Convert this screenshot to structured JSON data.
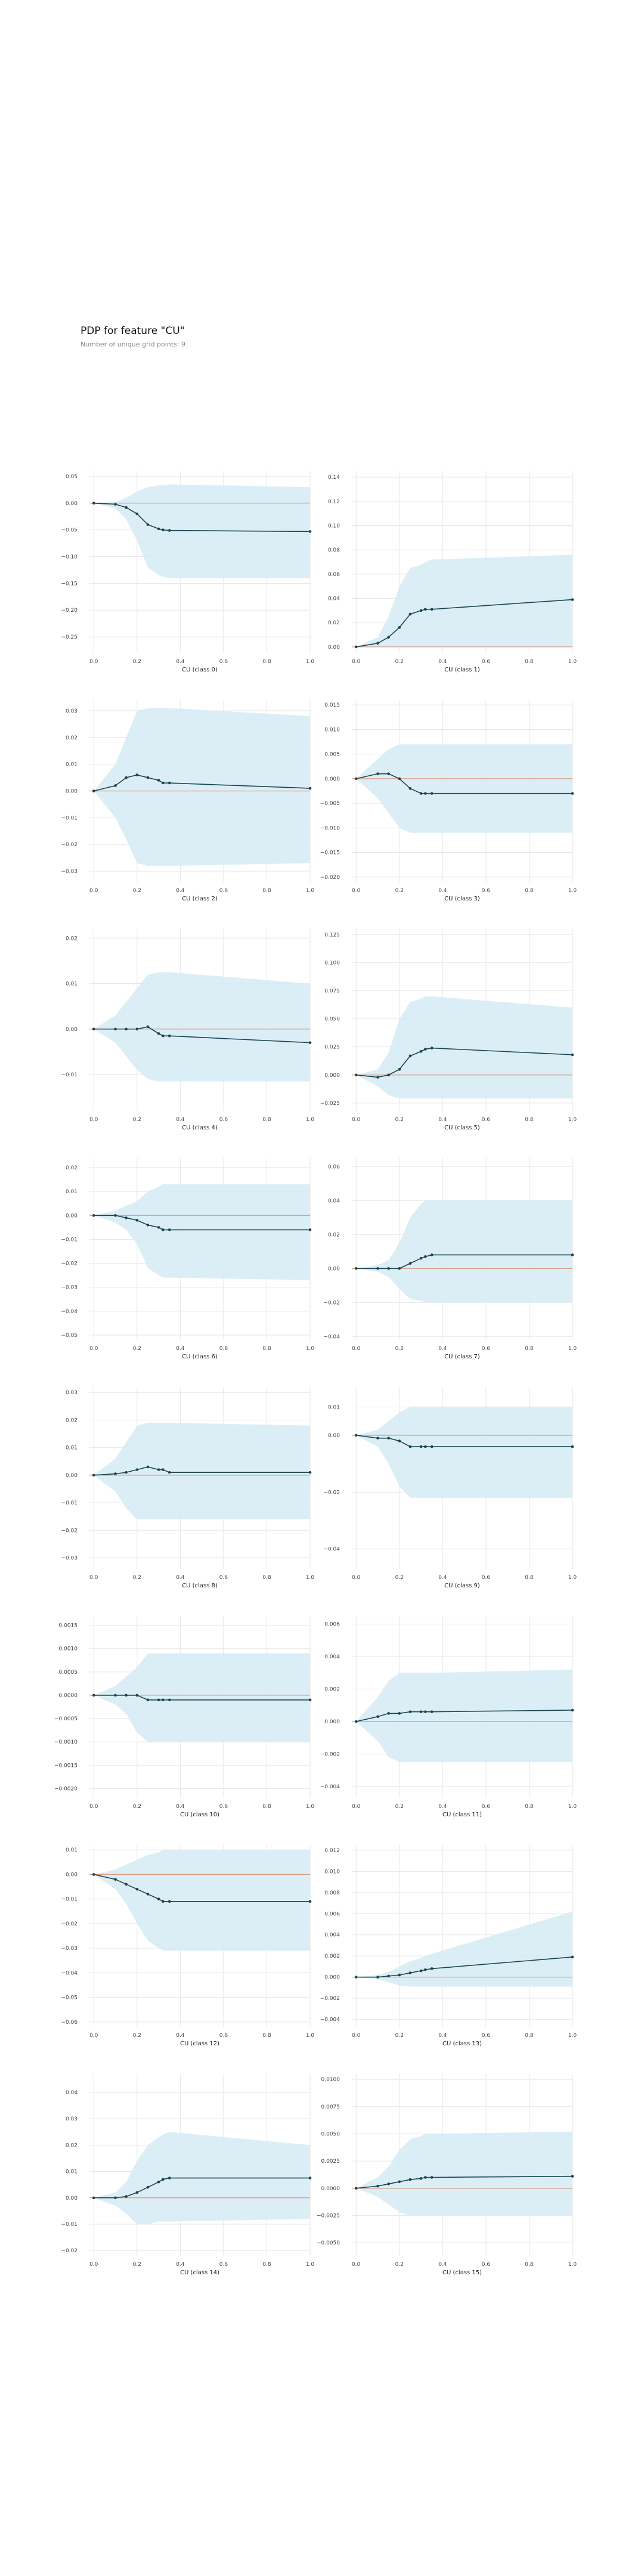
{
  "header": {
    "title": "PDP for feature \"CU\"",
    "subtitle": "Number of unique grid points: 9"
  },
  "colors": {
    "band": "#d6ebf3",
    "line": "#1a4550",
    "zero_line": "#d9977e",
    "grid": "#e6e6e6",
    "tick_text": "#444444"
  },
  "chart_data": [
    {
      "type": "line",
      "xlabel": "CU (class 0)",
      "x": [
        0.0,
        0.1,
        0.15,
        0.2,
        0.25,
        0.3,
        0.32,
        0.35,
        1.0
      ],
      "series": [
        {
          "values": [
            0,
            -0.002,
            -0.008,
            -0.02,
            -0.04,
            -0.048,
            -0.05,
            -0.051,
            -0.053
          ]
        }
      ],
      "band_upper": [
        0,
        0.002,
        0.01,
        0.022,
        0.03,
        0.033,
        0.034,
        0.035,
        0.03
      ],
      "band_lower": [
        0,
        -0.01,
        -0.03,
        -0.07,
        -0.12,
        -0.135,
        -0.138,
        -0.14,
        -0.14
      ],
      "ylim": [
        -0.28,
        0.06
      ],
      "yticks": [
        0.05,
        0,
        -0.05,
        -0.1,
        -0.15,
        -0.2,
        -0.25
      ],
      "ytick_labels": [
        "0.05",
        "0.00",
        "−0.05",
        "−0.10",
        "−0.15",
        "−0.20",
        "−0.25"
      ]
    },
    {
      "type": "line",
      "xlabel": "CU (class 1)",
      "x": [
        0.0,
        0.1,
        0.15,
        0.2,
        0.25,
        0.3,
        0.32,
        0.35,
        1.0
      ],
      "series": [
        {
          "values": [
            0,
            0.003,
            0.008,
            0.016,
            0.027,
            0.03,
            0.031,
            0.031,
            0.039
          ]
        }
      ],
      "band_upper": [
        0,
        0.008,
        0.025,
        0.05,
        0.065,
        0.068,
        0.07,
        0.072,
        0.076
      ],
      "band_lower": [
        0,
        0,
        0,
        0,
        0,
        0,
        0,
        0,
        0
      ],
      "ylim": [
        -0.005,
        0.145
      ],
      "yticks": [
        0,
        0.02,
        0.04,
        0.06,
        0.08,
        0.1,
        0.12,
        0.14
      ],
      "ytick_labels": [
        "0.00",
        "0.02",
        "0.04",
        "0.06",
        "0.08",
        "0.10",
        "0.12",
        "0.14"
      ]
    },
    {
      "type": "line",
      "xlabel": "CU (class 2)",
      "x": [
        0.0,
        0.1,
        0.15,
        0.2,
        0.25,
        0.3,
        0.32,
        0.35,
        1.0
      ],
      "series": [
        {
          "values": [
            0,
            0.002,
            0.005,
            0.006,
            0.005,
            0.004,
            0.003,
            0.003,
            0.001
          ]
        }
      ],
      "band_upper": [
        0,
        0.01,
        0.02,
        0.03,
        0.031,
        0.031,
        0.031,
        0.031,
        0.028
      ],
      "band_lower": [
        0,
        -0.01,
        -0.018,
        -0.027,
        -0.028,
        -0.028,
        -0.028,
        -0.028,
        -0.027
      ],
      "ylim": [
        -0.034,
        0.034
      ],
      "yticks": [
        0.03,
        0.02,
        0.01,
        0,
        -0.01,
        -0.02,
        -0.03
      ],
      "ytick_labels": [
        "0.03",
        "0.02",
        "0.01",
        "0.00",
        "−0.01",
        "−0.02",
        "−0.03"
      ]
    },
    {
      "type": "line",
      "xlabel": "CU (class 3)",
      "x": [
        0.0,
        0.1,
        0.15,
        0.2,
        0.25,
        0.3,
        0.32,
        0.35,
        1.0
      ],
      "series": [
        {
          "values": [
            0,
            0.001,
            0.001,
            0,
            -0.002,
            -0.003,
            -0.003,
            -0.003,
            -0.003
          ]
        }
      ],
      "band_upper": [
        0,
        0.004,
        0.006,
        0.007,
        0.007,
        0.007,
        0.007,
        0.007,
        0.007
      ],
      "band_lower": [
        0,
        -0.004,
        -0.007,
        -0.01,
        -0.011,
        -0.011,
        -0.011,
        -0.011,
        -0.011
      ],
      "ylim": [
        -0.021,
        0.016
      ],
      "yticks": [
        0.015,
        0.01,
        0.005,
        0,
        -0.005,
        -0.01,
        -0.015,
        -0.02
      ],
      "ytick_labels": [
        "0.015",
        "0.010",
        "0.005",
        "0.000",
        "−0.005",
        "−0.010",
        "−0.015",
        "−0.020"
      ]
    },
    {
      "type": "line",
      "xlabel": "CU (class 4)",
      "x": [
        0.0,
        0.1,
        0.15,
        0.2,
        0.25,
        0.3,
        0.32,
        0.35,
        1.0
      ],
      "series": [
        {
          "values": [
            0,
            0,
            0,
            0,
            0.0005,
            -0.001,
            -0.0015,
            -0.0015,
            -0.003
          ]
        }
      ],
      "band_upper": [
        0,
        0.003,
        0.006,
        0.009,
        0.012,
        0.0125,
        0.0125,
        0.0125,
        0.01
      ],
      "band_lower": [
        0,
        -0.003,
        -0.006,
        -0.009,
        -0.011,
        -0.0115,
        -0.0115,
        -0.0115,
        -0.0115
      ],
      "ylim": [
        -0.018,
        0.022
      ],
      "yticks": [
        0.02,
        0.01,
        0,
        -0.01
      ],
      "ytick_labels": [
        "0.02",
        "0.01",
        "0.00",
        "−0.01"
      ]
    },
    {
      "type": "line",
      "xlabel": "CU (class 5)",
      "x": [
        0.0,
        0.1,
        0.15,
        0.2,
        0.25,
        0.3,
        0.32,
        0.35,
        1.0
      ],
      "series": [
        {
          "values": [
            0,
            -0.002,
            0,
            0.005,
            0.017,
            0.021,
            0.023,
            0.024,
            0.018
          ]
        }
      ],
      "band_upper": [
        0,
        0.005,
        0.02,
        0.05,
        0.065,
        0.068,
        0.07,
        0.07,
        0.06
      ],
      "band_lower": [
        0,
        -0.01,
        -0.018,
        -0.021,
        -0.021,
        -0.021,
        -0.021,
        -0.021,
        -0.021
      ],
      "ylim": [
        -0.032,
        0.13
      ],
      "yticks": [
        0.125,
        0.1,
        0.075,
        0.05,
        0.025,
        0,
        -0.025
      ],
      "ytick_labels": [
        "0.125",
        "0.100",
        "0.075",
        "0.050",
        "0.025",
        "0.000",
        "−0.025"
      ]
    },
    {
      "type": "line",
      "xlabel": "CU (class 6)",
      "x": [
        0.0,
        0.1,
        0.15,
        0.2,
        0.25,
        0.3,
        0.32,
        0.35,
        1.0
      ],
      "series": [
        {
          "values": [
            0,
            0,
            -0.001,
            -0.002,
            -0.004,
            -0.005,
            -0.006,
            -0.006,
            -0.006
          ]
        }
      ],
      "band_upper": [
        0,
        0.002,
        0.004,
        0.006,
        0.01,
        0.012,
        0.013,
        0.013,
        0.013
      ],
      "band_lower": [
        0,
        -0.003,
        -0.006,
        -0.012,
        -0.022,
        -0.025,
        -0.026,
        -0.026,
        -0.027
      ],
      "ylim": [
        -0.052,
        0.024
      ],
      "yticks": [
        0.02,
        0.01,
        0,
        -0.01,
        -0.02,
        -0.03,
        -0.04,
        -0.05
      ],
      "ytick_labels": [
        "0.02",
        "0.01",
        "0.00",
        "−0.01",
        "−0.02",
        "−0.03",
        "−0.04",
        "−0.05"
      ]
    },
    {
      "type": "line",
      "xlabel": "CU (class 7)",
      "x": [
        0.0,
        0.1,
        0.15,
        0.2,
        0.25,
        0.3,
        0.32,
        0.35,
        1.0
      ],
      "series": [
        {
          "values": [
            0,
            0,
            0,
            0,
            0.003,
            0.006,
            0.007,
            0.008,
            0.008
          ]
        }
      ],
      "band_upper": [
        0,
        0.002,
        0.005,
        0.015,
        0.03,
        0.038,
        0.04,
        0.04,
        0.04
      ],
      "band_lower": [
        0,
        -0.002,
        -0.005,
        -0.012,
        -0.018,
        -0.019,
        -0.02,
        -0.02,
        -0.02
      ],
      "ylim": [
        -0.042,
        0.065
      ],
      "yticks": [
        0.06,
        0.04,
        0.02,
        0,
        -0.02,
        -0.04
      ],
      "ytick_labels": [
        "0.06",
        "0.04",
        "0.02",
        "0.00",
        "−0.02",
        "−0.04"
      ]
    },
    {
      "type": "line",
      "xlabel": "CU (class 8)",
      "x": [
        0.0,
        0.1,
        0.15,
        0.2,
        0.25,
        0.3,
        0.32,
        0.35,
        1.0
      ],
      "series": [
        {
          "values": [
            0,
            0.0005,
            0.001,
            0.002,
            0.003,
            0.002,
            0.002,
            0.001,
            0.001
          ]
        }
      ],
      "band_upper": [
        0,
        0.006,
        0.012,
        0.018,
        0.019,
        0.019,
        0.019,
        0.019,
        0.018
      ],
      "band_lower": [
        0,
        -0.006,
        -0.012,
        -0.016,
        -0.016,
        -0.016,
        -0.016,
        -0.016,
        -0.016
      ],
      "ylim": [
        -0.034,
        0.032
      ],
      "yticks": [
        0.03,
        0.02,
        0.01,
        0,
        -0.01,
        -0.02,
        -0.03
      ],
      "ytick_labels": [
        "0.03",
        "0.02",
        "0.01",
        "0.00",
        "−0.01",
        "−0.02",
        "−0.03"
      ]
    },
    {
      "type": "line",
      "xlabel": "CU (class 9)",
      "x": [
        0.0,
        0.1,
        0.15,
        0.2,
        0.25,
        0.3,
        0.32,
        0.35,
        1.0
      ],
      "series": [
        {
          "values": [
            0,
            -0.001,
            -0.001,
            -0.002,
            -0.004,
            -0.004,
            -0.004,
            -0.004,
            -0.004
          ]
        }
      ],
      "band_upper": [
        0,
        0.002,
        0.005,
        0.008,
        0.01,
        0.01,
        0.01,
        0.01,
        0.01
      ],
      "band_lower": [
        0,
        -0.004,
        -0.01,
        -0.018,
        -0.022,
        -0.022,
        -0.022,
        -0.022,
        -0.022
      ],
      "ylim": [
        -0.047,
        0.017
      ],
      "yticks": [
        0.01,
        0,
        -0.02,
        -0.04
      ],
      "ytick_labels": [
        "0.01",
        "0.00",
        "−0.02",
        "−0.04"
      ]
    },
    {
      "type": "line",
      "xlabel": "CU (class 10)",
      "x": [
        0.0,
        0.1,
        0.15,
        0.2,
        0.25,
        0.3,
        0.32,
        0.35,
        1.0
      ],
      "series": [
        {
          "values": [
            0,
            0,
            0,
            0,
            -0.0001,
            -0.0001,
            -0.0001,
            -0.0001,
            -0.0001
          ]
        }
      ],
      "band_upper": [
        0,
        0.0002,
        0.0004,
        0.0006,
        0.0009,
        0.0009,
        0.0009,
        0.0009,
        0.0009
      ],
      "band_lower": [
        0,
        -0.0002,
        -0.0004,
        -0.0008,
        -0.001,
        -0.001,
        -0.001,
        -0.001,
        -0.001
      ],
      "ylim": [
        -0.0022,
        0.0017
      ],
      "yticks": [
        0.0015,
        0.001,
        0.0005,
        0,
        -0.0005,
        -0.001,
        -0.0015,
        -0.002
      ],
      "ytick_labels": [
        "0.0015",
        "0.0010",
        "0.0005",
        "0.0000",
        "−0.0005",
        "−0.0010",
        "−0.0015",
        "−0.0020"
      ]
    },
    {
      "type": "line",
      "xlabel": "CU (class 11)",
      "x": [
        0.0,
        0.1,
        0.15,
        0.2,
        0.25,
        0.3,
        0.32,
        0.35,
        1.0
      ],
      "series": [
        {
          "values": [
            0,
            0.0003,
            0.0005,
            0.0005,
            0.0006,
            0.0006,
            0.0006,
            0.0006,
            0.0007
          ]
        }
      ],
      "band_upper": [
        0,
        0.0015,
        0.0025,
        0.003,
        0.003,
        0.003,
        0.003,
        0.003,
        0.0032
      ],
      "band_lower": [
        0,
        -0.0012,
        -0.0022,
        -0.0025,
        -0.0025,
        -0.0025,
        -0.0025,
        -0.0025,
        -0.0025
      ],
      "ylim": [
        -0.0047,
        0.0065
      ],
      "yticks": [
        0.006,
        0.004,
        0.002,
        0,
        -0.002,
        -0.004
      ],
      "ytick_labels": [
        "0.006",
        "0.004",
        "0.002",
        "0.000",
        "−0.002",
        "−0.004"
      ]
    },
    {
      "type": "line",
      "xlabel": "CU (class 12)",
      "x": [
        0.0,
        0.1,
        0.15,
        0.2,
        0.25,
        0.3,
        0.32,
        0.35,
        1.0
      ],
      "series": [
        {
          "values": [
            0,
            -0.002,
            -0.004,
            -0.006,
            -0.008,
            -0.01,
            -0.011,
            -0.011,
            -0.011
          ]
        }
      ],
      "band_upper": [
        0,
        0.002,
        0.004,
        0.006,
        0.008,
        0.009,
        0.01,
        0.01,
        0.01
      ],
      "band_lower": [
        0,
        -0.006,
        -0.012,
        -0.02,
        -0.027,
        -0.03,
        -0.031,
        -0.031,
        -0.031
      ],
      "ylim": [
        -0.062,
        0.012
      ],
      "yticks": [
        0.01,
        0,
        -0.01,
        -0.02,
        -0.03,
        -0.04,
        -0.05,
        -0.06
      ],
      "ytick_labels": [
        "0.01",
        "0.00",
        "−0.01",
        "−0.02",
        "−0.03",
        "−0.04",
        "−0.05",
        "−0.06"
      ]
    },
    {
      "type": "line",
      "xlabel": "CU (class 13)",
      "x": [
        0.0,
        0.1,
        0.15,
        0.2,
        0.25,
        0.3,
        0.32,
        0.35,
        1.0
      ],
      "series": [
        {
          "values": [
            0,
            0,
            0.0001,
            0.0002,
            0.0004,
            0.0006,
            0.0007,
            0.0008,
            0.0019
          ]
        }
      ],
      "band_upper": [
        0,
        0.0002,
        0.0005,
        0.001,
        0.0015,
        0.0018,
        0.002,
        0.0022,
        0.0062
      ],
      "band_lower": [
        0,
        -0.0002,
        -0.0005,
        -0.0008,
        -0.0009,
        -0.0009,
        -0.0009,
        -0.0009,
        -0.0009
      ],
      "ylim": [
        -0.0047,
        0.0125
      ],
      "yticks": [
        0.012,
        0.01,
        0.008,
        0.006,
        0.004,
        0.002,
        0,
        -0.002,
        -0.004
      ],
      "ytick_labels": [
        "0.012",
        "0.010",
        "0.008",
        "0.006",
        "0.004",
        "0.002",
        "0.000",
        "−0.002",
        "−0.004"
      ]
    },
    {
      "type": "line",
      "xlabel": "CU (class 14)",
      "x": [
        0.0,
        0.1,
        0.15,
        0.2,
        0.25,
        0.3,
        0.32,
        0.35,
        1.0
      ],
      "series": [
        {
          "values": [
            0,
            0,
            0.0005,
            0.002,
            0.004,
            0.006,
            0.007,
            0.0075,
            0.0075
          ]
        }
      ],
      "band_upper": [
        0,
        0.002,
        0.006,
        0.014,
        0.02,
        0.023,
        0.024,
        0.025,
        0.02
      ],
      "band_lower": [
        0,
        -0.003,
        -0.006,
        -0.01,
        -0.01,
        -0.009,
        -0.009,
        -0.009,
        -0.008
      ],
      "ylim": [
        -0.022,
        0.047
      ],
      "yticks": [
        0.04,
        0.03,
        0.02,
        0.01,
        0,
        -0.01,
        -0.02
      ],
      "ytick_labels": [
        "0.04",
        "0.03",
        "0.02",
        "0.01",
        "0.00",
        "−0.01",
        "−0.02"
      ]
    },
    {
      "type": "line",
      "xlabel": "CU (class 15)",
      "x": [
        0.0,
        0.1,
        0.15,
        0.2,
        0.25,
        0.3,
        0.32,
        0.35,
        1.0
      ],
      "series": [
        {
          "values": [
            0,
            0.0002,
            0.0004,
            0.0006,
            0.0008,
            0.0009,
            0.001,
            0.001,
            0.0011
          ]
        }
      ],
      "band_upper": [
        0,
        0.001,
        0.002,
        0.0035,
        0.0045,
        0.0048,
        0.005,
        0.005,
        0.0052
      ],
      "band_lower": [
        0,
        -0.0008,
        -0.0015,
        -0.0022,
        -0.0025,
        -0.0025,
        -0.0025,
        -0.0025,
        -0.0025
      ],
      "ylim": [
        -0.0062,
        0.0105
      ],
      "yticks": [
        0.01,
        0.0075,
        0.005,
        0.0025,
        0,
        -0.0025,
        -0.005
      ],
      "ytick_labels": [
        "0.0100",
        "0.0075",
        "0.0050",
        "0.0025",
        "0.0000",
        "−0.0025",
        "−0.0050"
      ]
    }
  ],
  "xticks": [
    0.0,
    0.2,
    0.4,
    0.6,
    0.8,
    1.0
  ],
  "xtick_labels": [
    "0.0",
    "0.2",
    "0.4",
    "0.6",
    "0.8",
    "1.0"
  ],
  "xlim": [
    -0.02,
    1.0
  ]
}
